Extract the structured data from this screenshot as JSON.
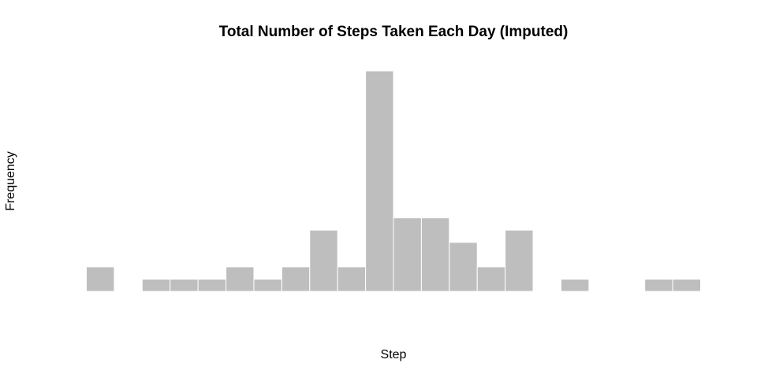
{
  "chart_data": {
    "type": "bar",
    "subtype": "histogram",
    "title": "Total Number of Steps Taken Each Day (Imputed)",
    "xlabel": "Step",
    "ylabel": "Frequency",
    "bins": 22,
    "values": [
      2,
      0,
      1,
      1,
      1,
      2,
      1,
      2,
      5,
      2,
      18,
      6,
      6,
      4,
      2,
      5,
      0,
      1,
      0,
      0,
      1,
      1
    ],
    "ylim": [
      0,
      18
    ],
    "axes_visible": false,
    "grid": false,
    "bar_fill": "#bebebe",
    "bar_border": "#ffffff",
    "background": "#ffffff"
  }
}
